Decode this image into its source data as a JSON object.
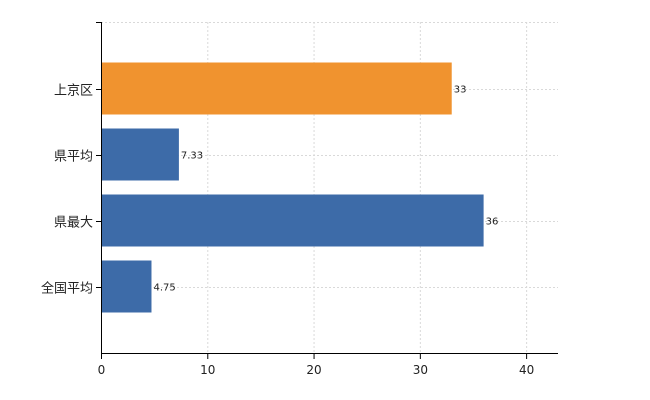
{
  "chart_data": {
    "type": "bar",
    "orientation": "horizontal",
    "title": "",
    "xlabel": "",
    "ylabel": "",
    "categories": [
      "上京区",
      "県平均",
      "県最大",
      "全国平均"
    ],
    "values": [
      33,
      7.33,
      36,
      4.75
    ],
    "value_labels": [
      "33",
      "7.33",
      "36",
      "4.75"
    ],
    "bar_colors": [
      "#f0932f",
      "#3d6ba8",
      "#3d6ba8",
      "#3d6ba8"
    ],
    "xlim": [
      0,
      43
    ],
    "xticks": [
      0,
      10,
      20,
      30,
      40
    ],
    "grid": true,
    "legend": "none"
  }
}
